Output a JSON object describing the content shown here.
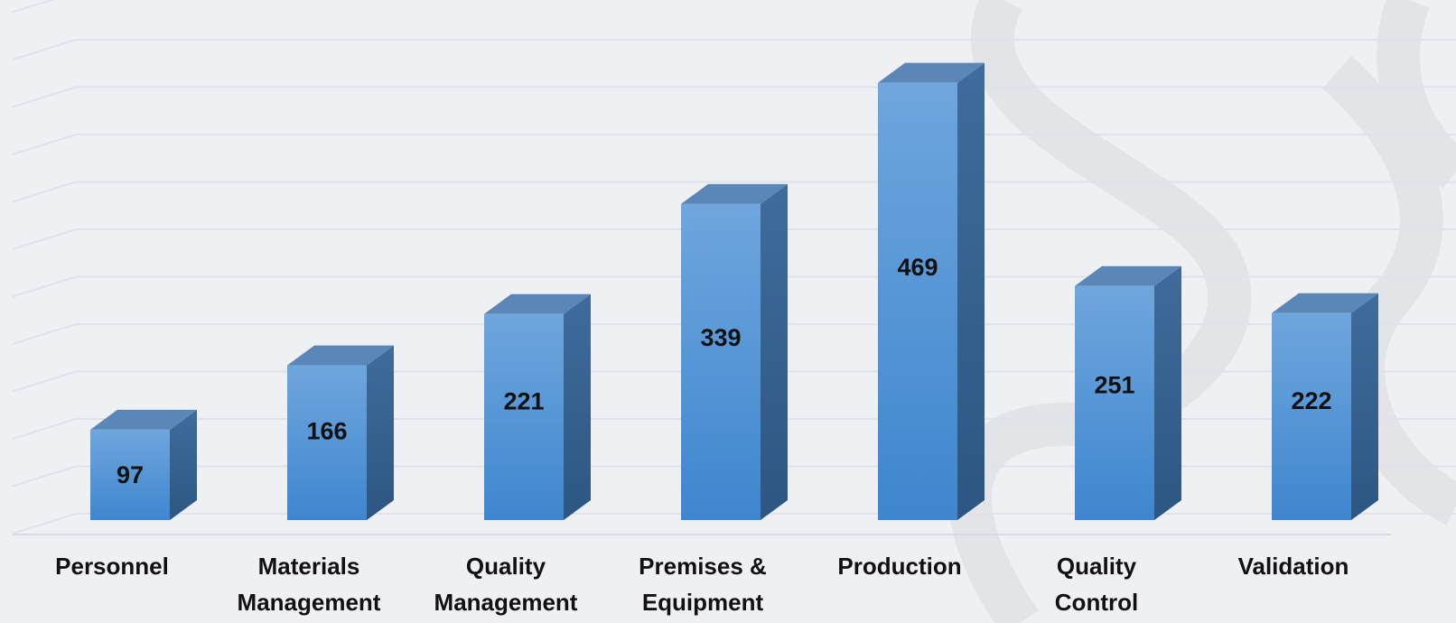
{
  "chart_data": {
    "type": "bar",
    "categories": [
      "Personnel",
      "Materials Management",
      "Quality Management",
      "Premises & Equipment",
      "Production",
      "Quality Control",
      "Validation"
    ],
    "category_lines": [
      [
        "Personnel"
      ],
      [
        "Materials",
        "Management"
      ],
      [
        "Quality",
        "Management"
      ],
      [
        "Premises &",
        "Equipment"
      ],
      [
        "Production"
      ],
      [
        "Quality",
        "Control"
      ],
      [
        "Validation"
      ]
    ],
    "values": [
      97,
      166,
      221,
      339,
      469,
      251,
      222
    ],
    "title": "",
    "xlabel": "",
    "ylabel": "",
    "ylim": [
      0,
      550
    ],
    "grid": true,
    "legend": "none",
    "style": "3d-column",
    "colors": {
      "front_top": "#6fa6dd",
      "front_bottom": "#3e86cf",
      "side": "#34608f",
      "top": "#5a87b8",
      "background": "#eef0f4",
      "grid": "#dfe2e7"
    }
  }
}
